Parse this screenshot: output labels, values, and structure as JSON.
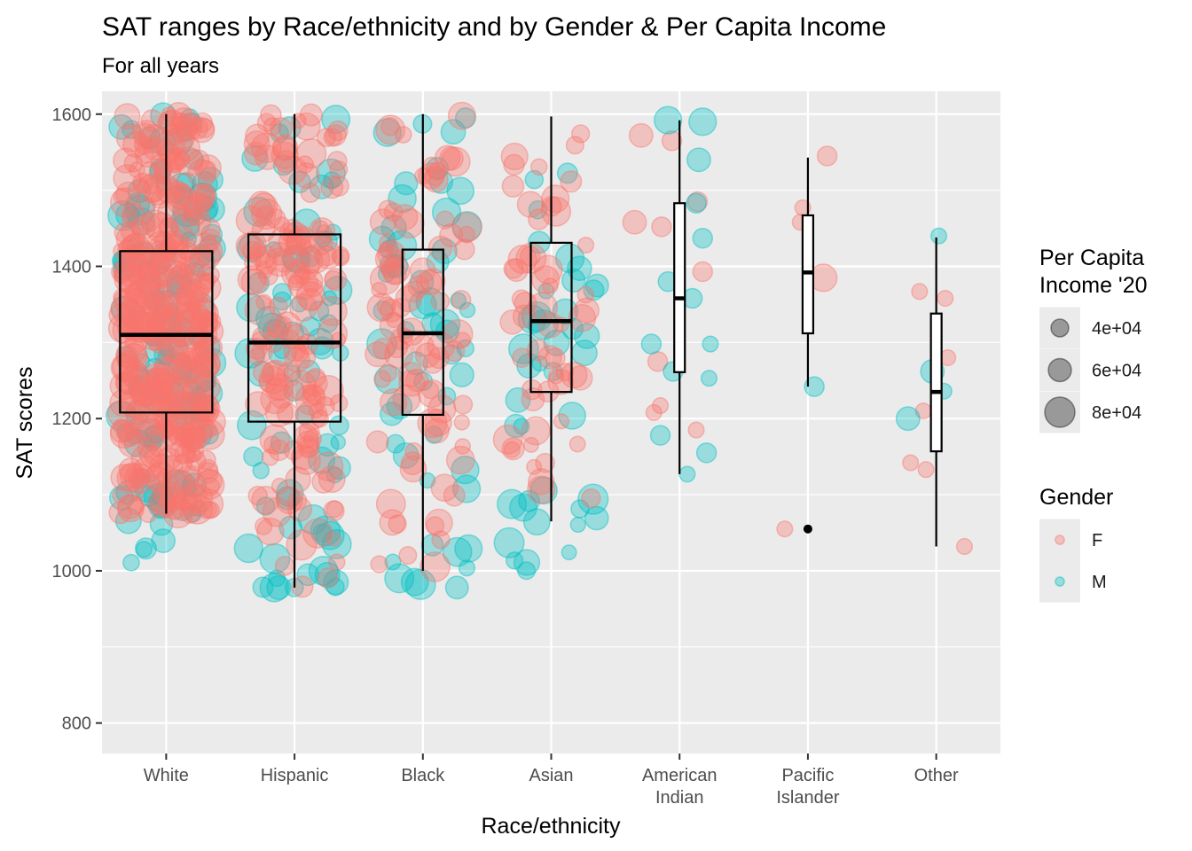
{
  "chart_data": {
    "type": "scatter",
    "overlay": "boxplot",
    "title": "SAT ranges by Race/ethnicity and by Gender & Per Capita Income",
    "subtitle": "For all years",
    "xlabel": "Race/ethnicity",
    "ylabel": "SAT scores",
    "ylim": [
      760,
      1630
    ],
    "yticks": [
      800,
      1000,
      1200,
      1400,
      1600
    ],
    "grid": true,
    "categories": [
      {
        "name": "White",
        "label_lines": [
          "White"
        ],
        "box": {
          "q1": 1208,
          "median": 1310,
          "q3": 1420,
          "lo": 1075,
          "hi": 1600,
          "width": "wide"
        },
        "outliers": []
      },
      {
        "name": "Hispanic",
        "label_lines": [
          "Hispanic"
        ],
        "box": {
          "q1": 1196,
          "median": 1300,
          "q3": 1442,
          "lo": 978,
          "hi": 1600,
          "width": "wide"
        },
        "outliers": []
      },
      {
        "name": "Black",
        "label_lines": [
          "Black"
        ],
        "box": {
          "q1": 1205,
          "median": 1312,
          "q3": 1422,
          "lo": 1000,
          "hi": 1600,
          "width": "medium"
        },
        "outliers": []
      },
      {
        "name": "Asian",
        "label_lines": [
          "Asian"
        ],
        "box": {
          "q1": 1235,
          "median": 1328,
          "q3": 1431,
          "lo": 1065,
          "hi": 1597,
          "width": "medium"
        },
        "outliers": []
      },
      {
        "name": "American Indian",
        "label_lines": [
          "American",
          "Indian"
        ],
        "box": {
          "q1": 1261,
          "median": 1358,
          "q3": 1483,
          "lo": 1127,
          "hi": 1592,
          "width": "narrow"
        },
        "outliers": []
      },
      {
        "name": "Pacific Islander",
        "label_lines": [
          "Pacific",
          "Islander"
        ],
        "box": {
          "q1": 1312,
          "median": 1392,
          "q3": 1467,
          "lo": 1242,
          "hi": 1543,
          "width": "narrow"
        },
        "outliers": [
          1055
        ]
      },
      {
        "name": "Other",
        "label_lines": [
          "Other"
        ],
        "box": {
          "q1": 1157,
          "median": 1235,
          "q3": 1338,
          "lo": 1032,
          "hi": 1438,
          "width": "narrow"
        },
        "outliers": []
      }
    ],
    "series": [
      {
        "name": "F",
        "color": "#F8766D"
      },
      {
        "name": "M",
        "color": "#00BFC4"
      }
    ],
    "point_counts": {
      "White": {
        "F": 420,
        "M": 130
      },
      "Hispanic": {
        "F": 170,
        "M": 75
      },
      "Black": {
        "F": 95,
        "M": 55
      },
      "Asian": {
        "F": 55,
        "M": 40
      },
      "American Indian": {
        "F": 10,
        "M": 14
      },
      "Pacific Islander": {
        "F": 5,
        "M": 1
      },
      "Other": {
        "F": 7,
        "M": 4
      }
    },
    "sample_points": {
      "American Indian": [
        {
          "g": "F",
          "y": 1572,
          "dx": -0.3,
          "s": 6
        },
        {
          "g": "F",
          "y": 1565,
          "dx": -0.06,
          "s": 5
        },
        {
          "g": "F",
          "y": 1458,
          "dx": -0.35,
          "s": 6
        },
        {
          "g": "F",
          "y": 1452,
          "dx": -0.14,
          "s": 5
        },
        {
          "g": "F",
          "y": 1393,
          "dx": 0.18,
          "s": 5
        },
        {
          "g": "F",
          "y": 1275,
          "dx": -0.17,
          "s": 5
        },
        {
          "g": "F",
          "y": 1217,
          "dx": -0.15,
          "s": 4
        },
        {
          "g": "F",
          "y": 1208,
          "dx": -0.2,
          "s": 4
        },
        {
          "g": "F",
          "y": 1185,
          "dx": 0.13,
          "s": 4
        },
        {
          "g": "F",
          "y": 1485,
          "dx": 0.14,
          "s": 5
        },
        {
          "g": "M",
          "y": 1592,
          "dx": -0.09,
          "s": 7
        },
        {
          "g": "M",
          "y": 1590,
          "dx": 0.18,
          "s": 7
        },
        {
          "g": "M",
          "y": 1540,
          "dx": 0.15,
          "s": 6
        },
        {
          "g": "M",
          "y": 1483,
          "dx": 0.13,
          "s": 5
        },
        {
          "g": "M",
          "y": 1437,
          "dx": 0.18,
          "s": 5
        },
        {
          "g": "M",
          "y": 1380,
          "dx": -0.09,
          "s": 5
        },
        {
          "g": "M",
          "y": 1358,
          "dx": 0.1,
          "s": 5
        },
        {
          "g": "M",
          "y": 1298,
          "dx": 0.24,
          "s": 4
        },
        {
          "g": "M",
          "y": 1298,
          "dx": -0.22,
          "s": 5
        },
        {
          "g": "M",
          "y": 1253,
          "dx": 0.23,
          "s": 4
        },
        {
          "g": "M",
          "y": 1262,
          "dx": -0.05,
          "s": 5
        },
        {
          "g": "M",
          "y": 1178,
          "dx": -0.15,
          "s": 5
        },
        {
          "g": "M",
          "y": 1155,
          "dx": 0.21,
          "s": 5
        },
        {
          "g": "M",
          "y": 1127,
          "dx": 0.06,
          "s": 4
        }
      ],
      "Pacific Islander": [
        {
          "g": "F",
          "y": 1545,
          "dx": 0.15,
          "s": 5
        },
        {
          "g": "F",
          "y": 1477,
          "dx": -0.04,
          "s": 4
        },
        {
          "g": "F",
          "y": 1458,
          "dx": -0.06,
          "s": 4
        },
        {
          "g": "F",
          "y": 1385,
          "dx": 0.12,
          "s": 7
        },
        {
          "g": "F",
          "y": 1055,
          "dx": -0.18,
          "s": 4
        },
        {
          "g": "M",
          "y": 1242,
          "dx": 0.05,
          "s": 5
        }
      ],
      "Other": [
        {
          "g": "F",
          "y": 1367,
          "dx": -0.13,
          "s": 4
        },
        {
          "g": "F",
          "y": 1358,
          "dx": 0.07,
          "s": 4
        },
        {
          "g": "F",
          "y": 1280,
          "dx": 0.09,
          "s": 4
        },
        {
          "g": "F",
          "y": 1210,
          "dx": -0.1,
          "s": 4
        },
        {
          "g": "F",
          "y": 1142,
          "dx": -0.2,
          "s": 4
        },
        {
          "g": "F",
          "y": 1133,
          "dx": -0.08,
          "s": 4
        },
        {
          "g": "F",
          "y": 1032,
          "dx": 0.22,
          "s": 4
        },
        {
          "g": "M",
          "y": 1440,
          "dx": 0.02,
          "s": 4
        },
        {
          "g": "M",
          "y": 1262,
          "dx": -0.03,
          "s": 6
        },
        {
          "g": "M",
          "y": 1200,
          "dx": -0.22,
          "s": 6
        },
        {
          "g": "M",
          "y": 1236,
          "dx": 0.06,
          "s": 4
        }
      ]
    },
    "legends": {
      "size": {
        "title_lines": [
          "Per Capita",
          "Income '20"
        ],
        "entries": [
          {
            "label": "4e+04",
            "value": 40000
          },
          {
            "label": "6e+04",
            "value": 60000
          },
          {
            "label": "8e+04",
            "value": 80000
          }
        ]
      },
      "color": {
        "title": "Gender",
        "entries": [
          {
            "label": "F",
            "color": "#F8766D"
          },
          {
            "label": "M",
            "color": "#00BFC4"
          }
        ]
      },
      "placement": "right"
    },
    "colors": {
      "panel": "#EBEBEB",
      "grid": "#FFFFFF",
      "axis_text": "#4D4D4D",
      "box": "#000000"
    }
  }
}
